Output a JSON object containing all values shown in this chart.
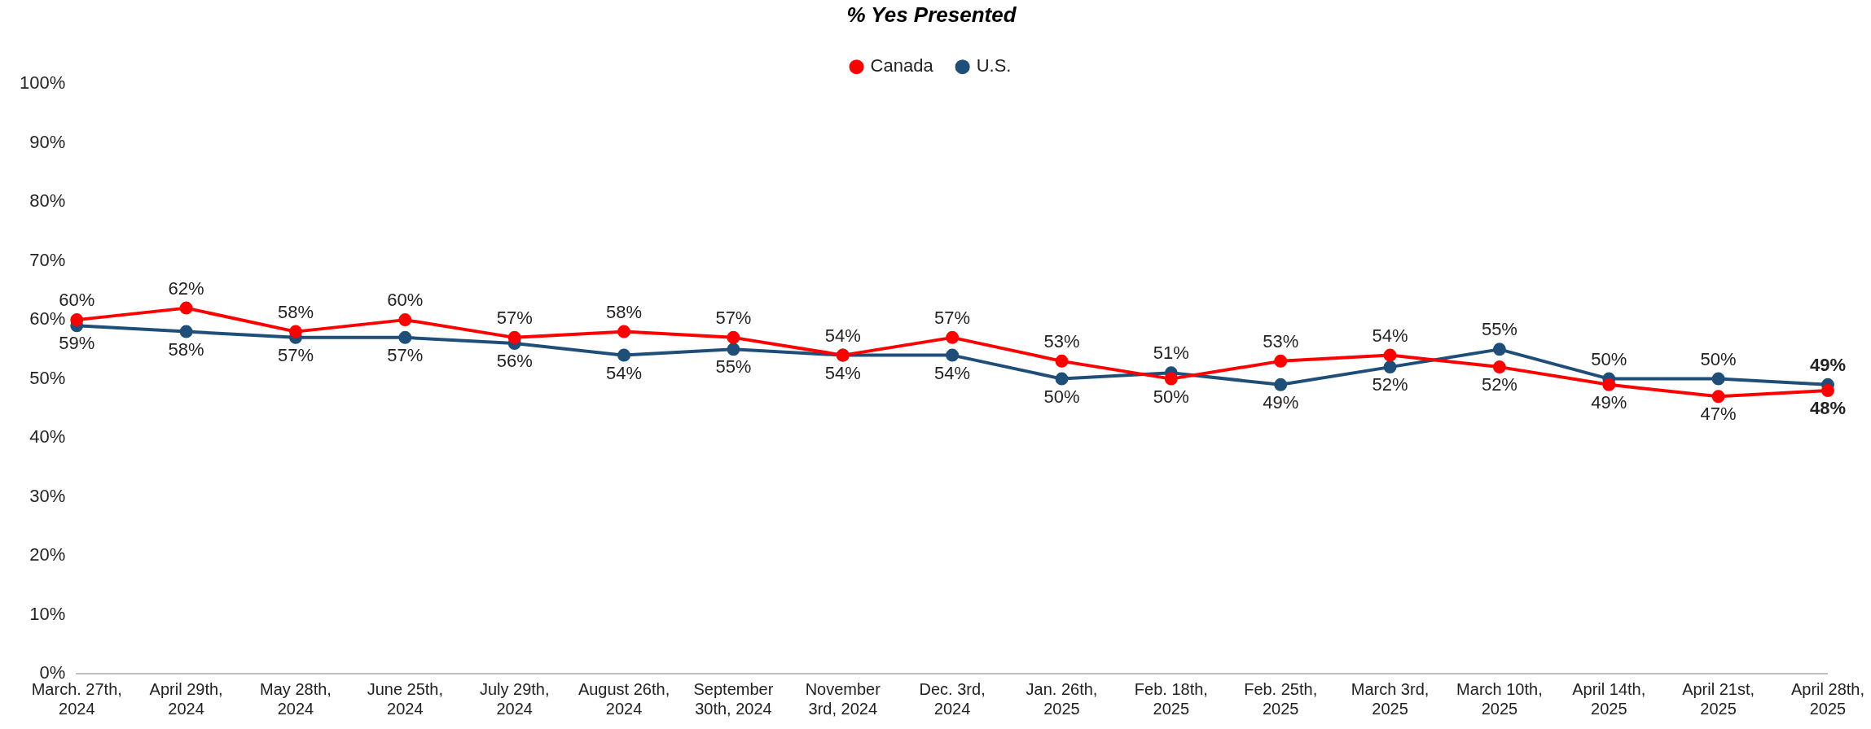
{
  "chart_data": {
    "type": "line",
    "title": "% Yes Presented",
    "categories": [
      "March. 27th, 2024",
      "April 29th, 2024",
      "May 28th, 2024",
      "June 25th, 2024",
      "July 29th, 2024",
      "August 26th, 2024",
      "September 30th, 2024",
      "November 3rd, 2024",
      "Dec. 3rd, 2024",
      "Jan. 26th, 2025",
      "Feb. 18th, 2025",
      "Feb. 25th, 2025",
      "March 3rd, 2025",
      "March 10th, 2025",
      "April 14th, 2025",
      "April 21st, 2025",
      "April 28th, 2025"
    ],
    "series": [
      {
        "name": "Canada",
        "color": "#ff0000",
        "values": [
          60,
          62,
          58,
          60,
          57,
          58,
          57,
          54,
          57,
          53,
          50,
          53,
          54,
          52,
          49,
          47,
          48
        ],
        "value_labels": [
          "60%",
          "62%",
          "58%",
          "60%",
          "57%",
          "58%",
          "57%",
          "54%",
          "57%",
          "53%",
          "50%",
          "53%",
          "54%",
          "52%",
          "49%",
          "47%",
          "48%"
        ]
      },
      {
        "name": "U.S.",
        "color": "#1f4e79",
        "values": [
          59,
          58,
          57,
          57,
          56,
          54,
          55,
          54,
          54,
          50,
          51,
          49,
          52,
          55,
          50,
          50,
          49
        ],
        "value_labels": [
          "59%",
          "58%",
          "57%",
          "57%",
          "56%",
          "54%",
          "55%",
          "54%",
          "54%",
          "50%",
          "51%",
          "49%",
          "52%",
          "55%",
          "50%",
          "50%",
          "49%"
        ]
      }
    ],
    "ylim": [
      0,
      100
    ],
    "yticks": [
      {
        "value": 0,
        "label": "0%"
      },
      {
        "value": 10,
        "label": "10%"
      },
      {
        "value": 20,
        "label": "20%"
      },
      {
        "value": 30,
        "label": "30%"
      },
      {
        "value": 40,
        "label": "40%"
      },
      {
        "value": 50,
        "label": "50%"
      },
      {
        "value": 60,
        "label": "60%"
      },
      {
        "value": 70,
        "label": "70%"
      },
      {
        "value": 80,
        "label": "80%"
      },
      {
        "value": 90,
        "label": "90%"
      },
      {
        "value": 100,
        "label": "100%"
      }
    ],
    "grid": false,
    "legend": "top",
    "marker": "circle",
    "line_style": "solid"
  }
}
